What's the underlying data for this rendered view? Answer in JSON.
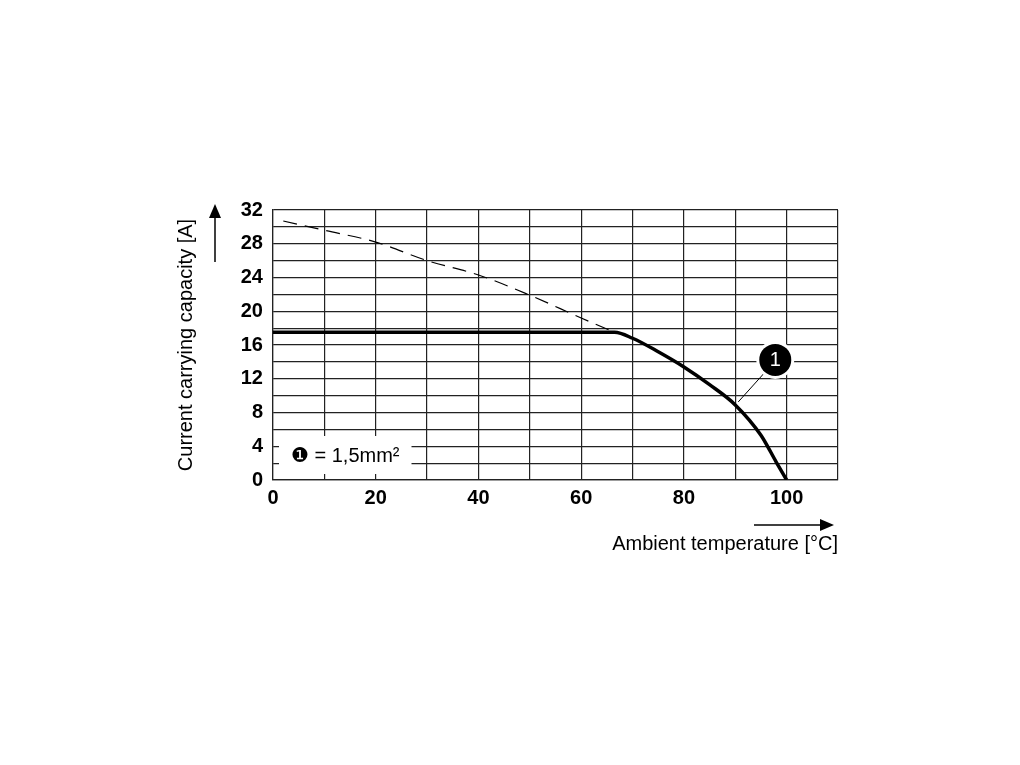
{
  "chart_data": {
    "type": "line",
    "xlabel": "Ambient temperature [°C]",
    "ylabel": "Current carrying capacity [A]",
    "xlim": [
      0,
      110
    ],
    "xticks": [
      0,
      {
        "value": 10,
        "label": null
      },
      20,
      {
        "value": 30,
        "label": null
      },
      40,
      {
        "value": 50,
        "label": null
      },
      60,
      {
        "value": 70,
        "label": null
      },
      80,
      {
        "value": 90,
        "label": null
      },
      100,
      {
        "value": 110,
        "label": null
      }
    ],
    "ylim": [
      0,
      32
    ],
    "yticks": [
      0,
      {
        "value": 2,
        "label": null
      },
      4,
      {
        "value": 6,
        "label": null
      },
      8,
      {
        "value": 10,
        "label": null
      },
      12,
      {
        "value": 14,
        "label": null
      },
      16,
      {
        "value": 18,
        "label": null
      },
      20,
      {
        "value": 22,
        "label": null
      },
      24,
      {
        "value": 26,
        "label": null
      },
      28,
      {
        "value": 30,
        "label": null
      },
      32
    ],
    "grid": true,
    "legend": false,
    "marker": "none",
    "series": [
      {
        "name": "1",
        "color": "#000000",
        "line_style": "solid",
        "x": [
          0,
          66.5,
          70,
          75,
          80,
          85,
          90,
          95,
          98,
          100
        ],
        "values": [
          17.5,
          17.5,
          16.8,
          15.2,
          13.4,
          11.3,
          8.9,
          5.3,
          2.1,
          0
        ]
      },
      {
        "color": "#000000",
        "line_style": "dashed",
        "x": [
          2,
          10,
          20,
          30,
          40,
          50,
          60,
          66.5
        ],
        "values": [
          30.7,
          29.6,
          28.2,
          26.0,
          24.3,
          21.9,
          19.2,
          17.5
        ]
      }
    ],
    "annotations": [
      "❶ = 1,5mm²"
    ]
  }
}
